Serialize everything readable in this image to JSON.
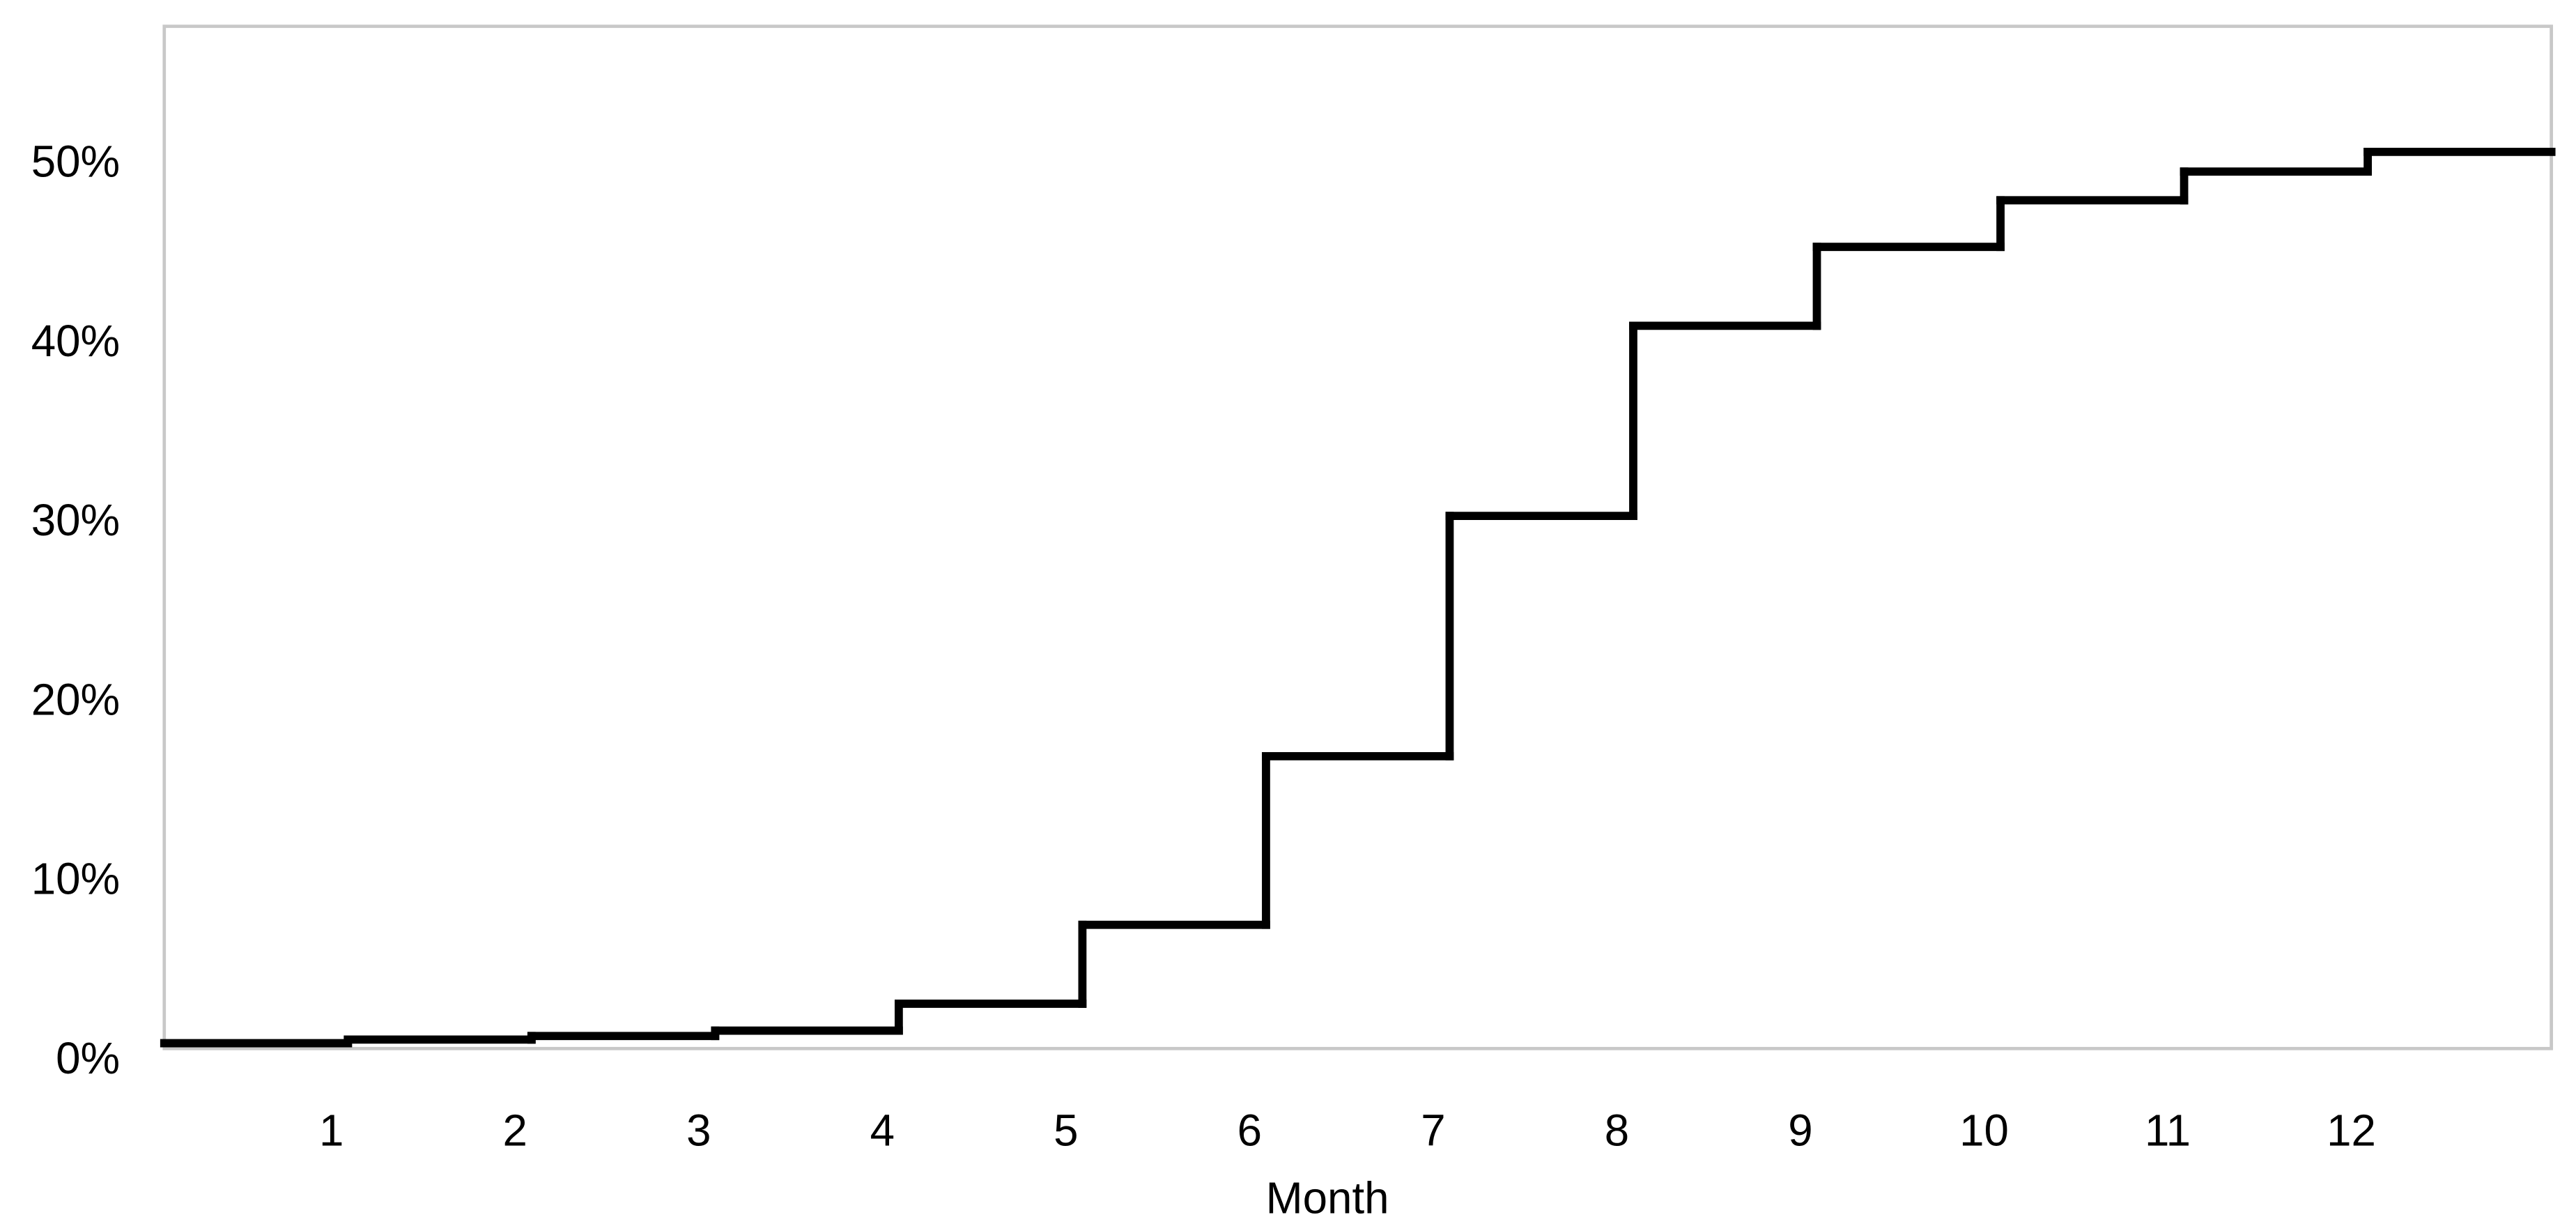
{
  "chart_data": {
    "type": "line",
    "step": "post",
    "x_label": "Month",
    "x": [
      0,
      1,
      2,
      3,
      4,
      5,
      6,
      7,
      8,
      9,
      10,
      11,
      12
    ],
    "series": [
      {
        "color": "#000000",
        "values": [
          0.3,
          0.5,
          0.7,
          1.0,
          2.5,
          6.9,
          16.3,
          29.7,
          40.3,
          44.7,
          47.3,
          48.9,
          50.0
        ]
      }
    ],
    "xlim": [
      0,
      13
    ],
    "xticks": [
      1,
      2,
      3,
      4,
      5,
      6,
      7,
      8,
      9,
      10,
      11,
      12
    ],
    "ylim": [
      0,
      57
    ],
    "yticks": [
      {
        "value": 0,
        "label": "0%"
      },
      {
        "value": 10,
        "label": "10%"
      },
      {
        "value": 20,
        "label": "20%"
      },
      {
        "value": 30,
        "label": "30%"
      },
      {
        "value": 40,
        "label": "40%"
      },
      {
        "value": 50,
        "label": "50%"
      }
    ],
    "grid": false
  }
}
